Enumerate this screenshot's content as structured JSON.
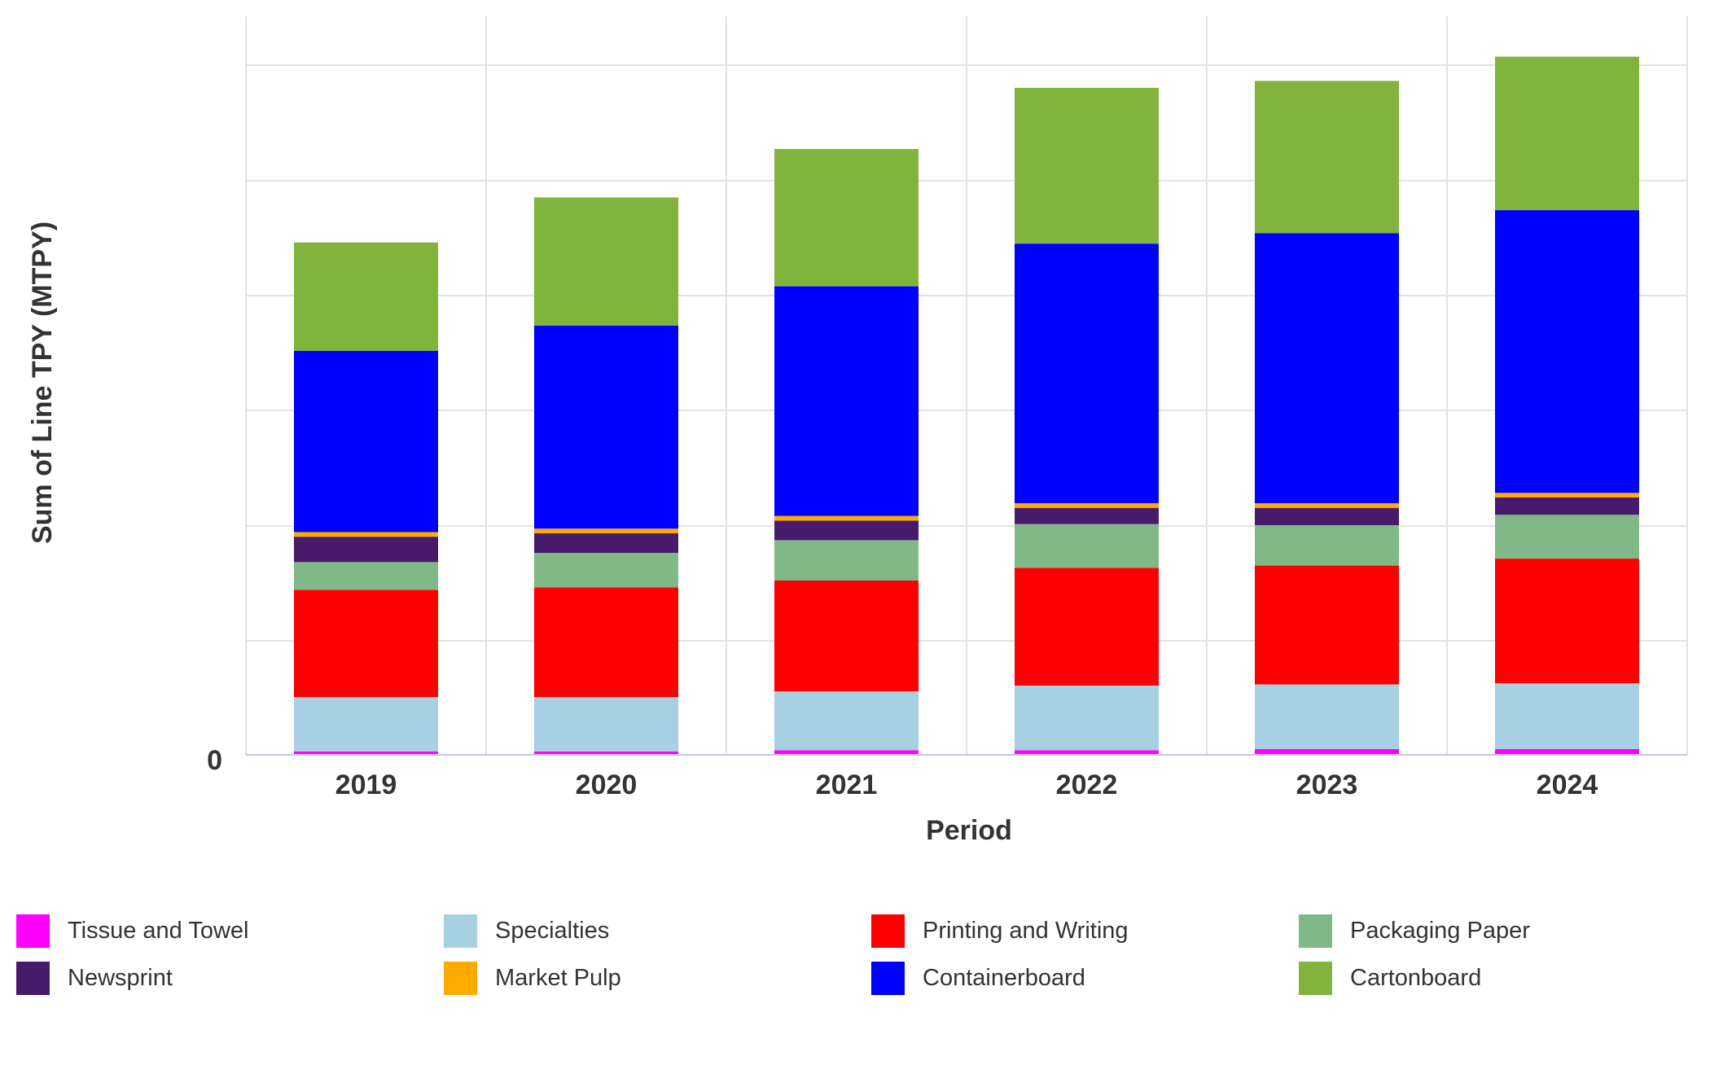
{
  "chart_data": {
    "type": "bar",
    "stacked": true,
    "title": "",
    "xlabel": "Period",
    "ylabel": "Sum of Line TPY (MTPY)",
    "y_tick_labels": [
      "0"
    ],
    "ylim": [
      0,
      640
    ],
    "gridlines": true,
    "legend_position": "bottom",
    "categories": [
      "2019",
      "2020",
      "2021",
      "2022",
      "2023",
      "2024"
    ],
    "series": [
      {
        "name": "Tissue and Towel",
        "color": "#FF00FF",
        "values": [
          3,
          3,
          4,
          4,
          5,
          5
        ]
      },
      {
        "name": "Specialties",
        "color": "#A8D0E3",
        "values": [
          47,
          47,
          51,
          56,
          56,
          57
        ]
      },
      {
        "name": "Printing and Writing",
        "color": "#FF0000",
        "values": [
          93,
          95,
          96,
          102,
          103,
          108
        ]
      },
      {
        "name": "Packaging Paper",
        "color": "#80B888",
        "values": [
          24,
          30,
          35,
          38,
          35,
          38
        ]
      },
      {
        "name": "Newsprint",
        "color": "#471A6B",
        "values": [
          22,
          17,
          17,
          14,
          15,
          15
        ]
      },
      {
        "name": "Market Pulp",
        "color": "#FFAA00",
        "values": [
          4,
          4,
          4,
          4,
          4,
          4
        ]
      },
      {
        "name": "Containerboard",
        "color": "#0000FF",
        "values": [
          157,
          176,
          199,
          225,
          234,
          245
        ]
      },
      {
        "name": "Cartonboard",
        "color": "#80B43C",
        "values": [
          94,
          111,
          119,
          135,
          132,
          133
        ]
      }
    ]
  }
}
